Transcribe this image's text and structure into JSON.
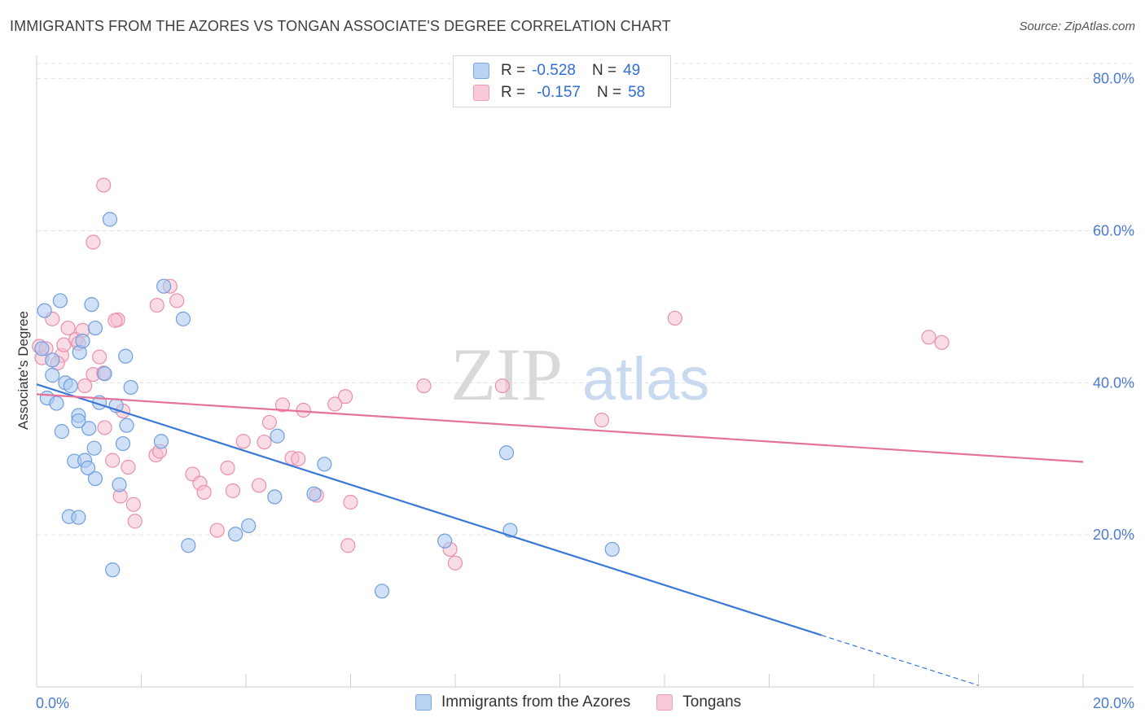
{
  "header": {
    "title": "IMMIGRANTS FROM THE AZORES VS TONGAN ASSOCIATE'S DEGREE CORRELATION CHART",
    "source": "Source: ZipAtlas.com"
  },
  "watermark": {
    "zip": "ZIP",
    "atlas": "atlas"
  },
  "legend": {
    "rows": [
      {
        "r_label": "R =",
        "r_value": "-0.528",
        "n_label": "N =",
        "n_value": "49"
      },
      {
        "r_label": "R =",
        "r_value": "-0.157",
        "n_label": "N =",
        "n_value": "58"
      }
    ]
  },
  "colors": {
    "blue_fill": "#a9c8f0",
    "blue_stroke": "#6f9ee0",
    "blue_line": "#3a78d8",
    "pink_fill": "#f6bfd0",
    "pink_stroke": "#ea8fae",
    "pink_line": "#e4729a",
    "grid": "#e3e3e3",
    "tick_text": "#4a7bd0"
  },
  "chart_data": {
    "type": "scatter",
    "title": "IMMIGRANTS FROM THE AZORES VS TONGAN ASSOCIATE'S DEGREE CORRELATION CHART",
    "xlabel": "",
    "ylabel": "Associate's Degree",
    "xlim": [
      0,
      20
    ],
    "ylim": [
      0,
      82
    ],
    "x_tick_labels": [
      "0.0%",
      "20.0%"
    ],
    "y_ticks": [
      20,
      40,
      60,
      80
    ],
    "y_tick_labels": [
      "20.0%",
      "40.0%",
      "60.0%",
      "80.0%"
    ],
    "grid": true,
    "series": [
      {
        "name": "Immigrants from the Azores",
        "color": "blue",
        "trend": {
          "x0": 0,
          "y0": 39.8,
          "x1": 15.0,
          "y1": 6.8,
          "dash_to_x": 18.0,
          "dash_to_y": 0.2
        },
        "points": [
          [
            0.1,
            44.5
          ],
          [
            0.15,
            49.5
          ],
          [
            0.45,
            50.8
          ],
          [
            0.3,
            43.0
          ],
          [
            0.3,
            41.0
          ],
          [
            0.2,
            38.0
          ],
          [
            0.38,
            37.3
          ],
          [
            0.55,
            40.0
          ],
          [
            0.65,
            39.6
          ],
          [
            0.48,
            33.6
          ],
          [
            0.82,
            44.0
          ],
          [
            0.88,
            45.5
          ],
          [
            1.12,
            47.2
          ],
          [
            1.4,
            61.5
          ],
          [
            1.05,
            50.3
          ],
          [
            1.7,
            43.5
          ],
          [
            1.8,
            39.4
          ],
          [
            2.43,
            52.7
          ],
          [
            2.8,
            48.4
          ],
          [
            1.3,
            41.2
          ],
          [
            1.52,
            37.0
          ],
          [
            1.72,
            34.4
          ],
          [
            1.2,
            37.4
          ],
          [
            0.8,
            35.7
          ],
          [
            1.0,
            34.0
          ],
          [
            0.8,
            35.0
          ],
          [
            1.1,
            31.4
          ],
          [
            1.65,
            32.0
          ],
          [
            2.38,
            32.3
          ],
          [
            0.72,
            29.7
          ],
          [
            0.92,
            29.8
          ],
          [
            0.98,
            28.8
          ],
          [
            1.12,
            27.4
          ],
          [
            1.58,
            26.6
          ],
          [
            0.62,
            22.4
          ],
          [
            0.8,
            22.3
          ],
          [
            1.45,
            15.4
          ],
          [
            2.9,
            18.6
          ],
          [
            3.8,
            20.1
          ],
          [
            4.05,
            21.2
          ],
          [
            4.55,
            25.0
          ],
          [
            4.6,
            33.0
          ],
          [
            5.5,
            29.3
          ],
          [
            5.3,
            25.4
          ],
          [
            7.8,
            19.2
          ],
          [
            6.6,
            12.6
          ],
          [
            8.98,
            30.8
          ],
          [
            9.05,
            20.6
          ],
          [
            11.0,
            18.1
          ]
        ]
      },
      {
        "name": "Tongans",
        "color": "pink",
        "trend": {
          "x0": 0,
          "y0": 38.5,
          "x1": 20.0,
          "y1": 29.6
        },
        "points": [
          [
            0.05,
            44.8
          ],
          [
            0.1,
            43.3
          ],
          [
            0.3,
            48.4
          ],
          [
            0.48,
            43.6
          ],
          [
            0.52,
            45.0
          ],
          [
            0.6,
            47.2
          ],
          [
            0.75,
            45.7
          ],
          [
            0.8,
            45.2
          ],
          [
            0.88,
            46.9
          ],
          [
            0.92,
            39.6
          ],
          [
            1.08,
            41.1
          ],
          [
            1.2,
            43.4
          ],
          [
            1.28,
            41.3
          ],
          [
            1.55,
            48.3
          ],
          [
            1.5,
            48.2
          ],
          [
            1.65,
            36.3
          ],
          [
            1.3,
            34.1
          ],
          [
            1.45,
            29.8
          ],
          [
            1.75,
            28.9
          ],
          [
            1.6,
            25.1
          ],
          [
            1.85,
            24.0
          ],
          [
            1.88,
            21.8
          ],
          [
            2.28,
            30.5
          ],
          [
            2.35,
            31.0
          ],
          [
            2.3,
            50.2
          ],
          [
            2.68,
            50.8
          ],
          [
            2.55,
            52.7
          ],
          [
            1.08,
            58.5
          ],
          [
            1.28,
            66.0
          ],
          [
            2.98,
            28.0
          ],
          [
            3.12,
            26.8
          ],
          [
            3.2,
            25.6
          ],
          [
            3.45,
            20.6
          ],
          [
            3.65,
            28.8
          ],
          [
            3.75,
            25.8
          ],
          [
            3.95,
            32.3
          ],
          [
            4.25,
            26.5
          ],
          [
            4.45,
            34.8
          ],
          [
            4.35,
            32.2
          ],
          [
            4.7,
            37.1
          ],
          [
            4.88,
            30.1
          ],
          [
            5.0,
            30.0
          ],
          [
            5.1,
            36.4
          ],
          [
            5.35,
            25.2
          ],
          [
            5.7,
            37.2
          ],
          [
            5.9,
            38.2
          ],
          [
            6.0,
            24.3
          ],
          [
            5.95,
            18.6
          ],
          [
            7.4,
            39.6
          ],
          [
            7.9,
            18.1
          ],
          [
            8.0,
            16.3
          ],
          [
            8.9,
            39.6
          ],
          [
            10.8,
            35.1
          ],
          [
            12.2,
            48.5
          ],
          [
            17.05,
            46.0
          ],
          [
            17.3,
            45.3
          ],
          [
            0.18,
            44.5
          ],
          [
            0.4,
            42.6
          ]
        ]
      }
    ]
  }
}
